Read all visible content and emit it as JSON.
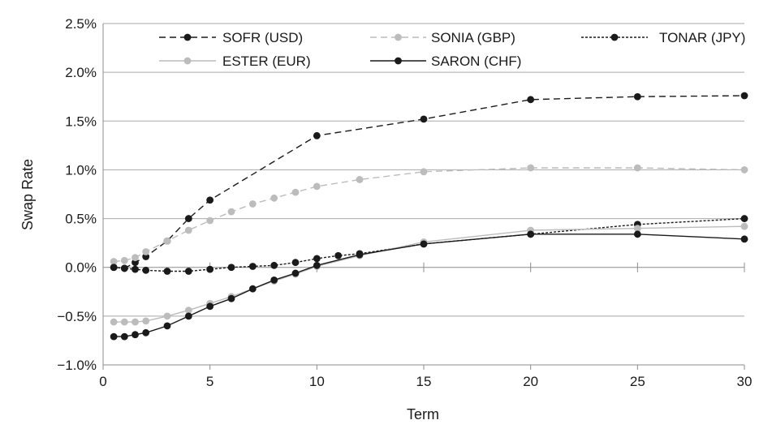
{
  "chart_data": {
    "type": "line",
    "title": "",
    "xlabel": "Term",
    "ylabel": "Swap Rate",
    "xlim": [
      0,
      30
    ],
    "ylim": [
      -1.0,
      2.5
    ],
    "x_ticks": [
      0,
      5,
      10,
      15,
      20,
      25,
      30
    ],
    "x_tick_labels": [
      "0",
      "5",
      "10",
      "15",
      "20",
      "25",
      "30"
    ],
    "y_ticks": [
      -1.0,
      -0.5,
      0.0,
      0.5,
      1.0,
      1.5,
      2.0,
      2.5
    ],
    "y_tick_labels": [
      "−1.0%",
      "−0.5%",
      "0.0%",
      "0.5%",
      "1.0%",
      "1.5%",
      "2.0%",
      "2.5%"
    ],
    "grid": "horizontal",
    "legend_position": "top",
    "series": [
      {
        "name": "SOFR (USD)",
        "color": "#1a1a1a",
        "line_style": "dashed",
        "points": [
          [
            0.5,
            0.0
          ],
          [
            1,
            -0.01
          ],
          [
            1.5,
            0.05
          ],
          [
            2,
            0.11
          ],
          [
            3,
            0.27
          ],
          [
            4,
            0.5
          ],
          [
            5,
            0.69
          ],
          [
            10,
            1.35
          ],
          [
            15,
            1.52
          ],
          [
            20,
            1.72
          ],
          [
            25,
            1.75
          ],
          [
            30,
            1.76
          ]
        ]
      },
      {
        "name": "SONIA (GBP)",
        "color": "#bcbcbc",
        "line_style": "dashed",
        "points": [
          [
            0.5,
            0.06
          ],
          [
            1,
            0.07
          ],
          [
            1.5,
            0.1
          ],
          [
            2,
            0.16
          ],
          [
            3,
            0.27
          ],
          [
            4,
            0.38
          ],
          [
            5,
            0.48
          ],
          [
            6,
            0.57
          ],
          [
            7,
            0.65
          ],
          [
            8,
            0.71
          ],
          [
            9,
            0.77
          ],
          [
            10,
            0.83
          ],
          [
            12,
            0.9
          ],
          [
            15,
            0.98
          ],
          [
            20,
            1.02
          ],
          [
            25,
            1.02
          ],
          [
            30,
            1.0
          ]
        ]
      },
      {
        "name": "TONAR (JPY)",
        "color": "#1a1a1a",
        "line_style": "dotted",
        "points": [
          [
            0.5,
            0.0
          ],
          [
            1,
            -0.01
          ],
          [
            1.5,
            -0.02
          ],
          [
            2,
            -0.03
          ],
          [
            3,
            -0.04
          ],
          [
            4,
            -0.04
          ],
          [
            5,
            -0.02
          ],
          [
            6,
            0.0
          ],
          [
            7,
            0.01
          ],
          [
            8,
            0.02
          ],
          [
            9,
            0.05
          ],
          [
            10,
            0.09
          ],
          [
            11,
            0.12
          ],
          [
            12,
            0.14
          ],
          [
            15,
            0.24
          ],
          [
            20,
            0.34
          ],
          [
            25,
            0.44
          ],
          [
            30,
            0.5
          ]
        ]
      },
      {
        "name": "ESTER (EUR)",
        "color": "#bcbcbc",
        "line_style": "solid",
        "points": [
          [
            0.5,
            -0.56
          ],
          [
            1,
            -0.56
          ],
          [
            1.5,
            -0.56
          ],
          [
            2,
            -0.55
          ],
          [
            3,
            -0.5
          ],
          [
            4,
            -0.44
          ],
          [
            5,
            -0.37
          ],
          [
            6,
            -0.3
          ],
          [
            7,
            -0.22
          ],
          [
            8,
            -0.14
          ],
          [
            9,
            -0.07
          ],
          [
            10,
            0.01
          ],
          [
            12,
            0.12
          ],
          [
            15,
            0.26
          ],
          [
            20,
            0.38
          ],
          [
            25,
            0.4
          ],
          [
            30,
            0.42
          ]
        ]
      },
      {
        "name": "SARON (CHF)",
        "color": "#1a1a1a",
        "line_style": "solid",
        "points": [
          [
            0.5,
            -0.71
          ],
          [
            1,
            -0.71
          ],
          [
            1.5,
            -0.69
          ],
          [
            2,
            -0.67
          ],
          [
            3,
            -0.6
          ],
          [
            4,
            -0.5
          ],
          [
            5,
            -0.4
          ],
          [
            6,
            -0.32
          ],
          [
            7,
            -0.22
          ],
          [
            8,
            -0.13
          ],
          [
            9,
            -0.06
          ],
          [
            10,
            0.02
          ],
          [
            12,
            0.13
          ],
          [
            15,
            0.24
          ],
          [
            20,
            0.34
          ],
          [
            25,
            0.34
          ],
          [
            30,
            0.29
          ]
        ]
      }
    ]
  }
}
